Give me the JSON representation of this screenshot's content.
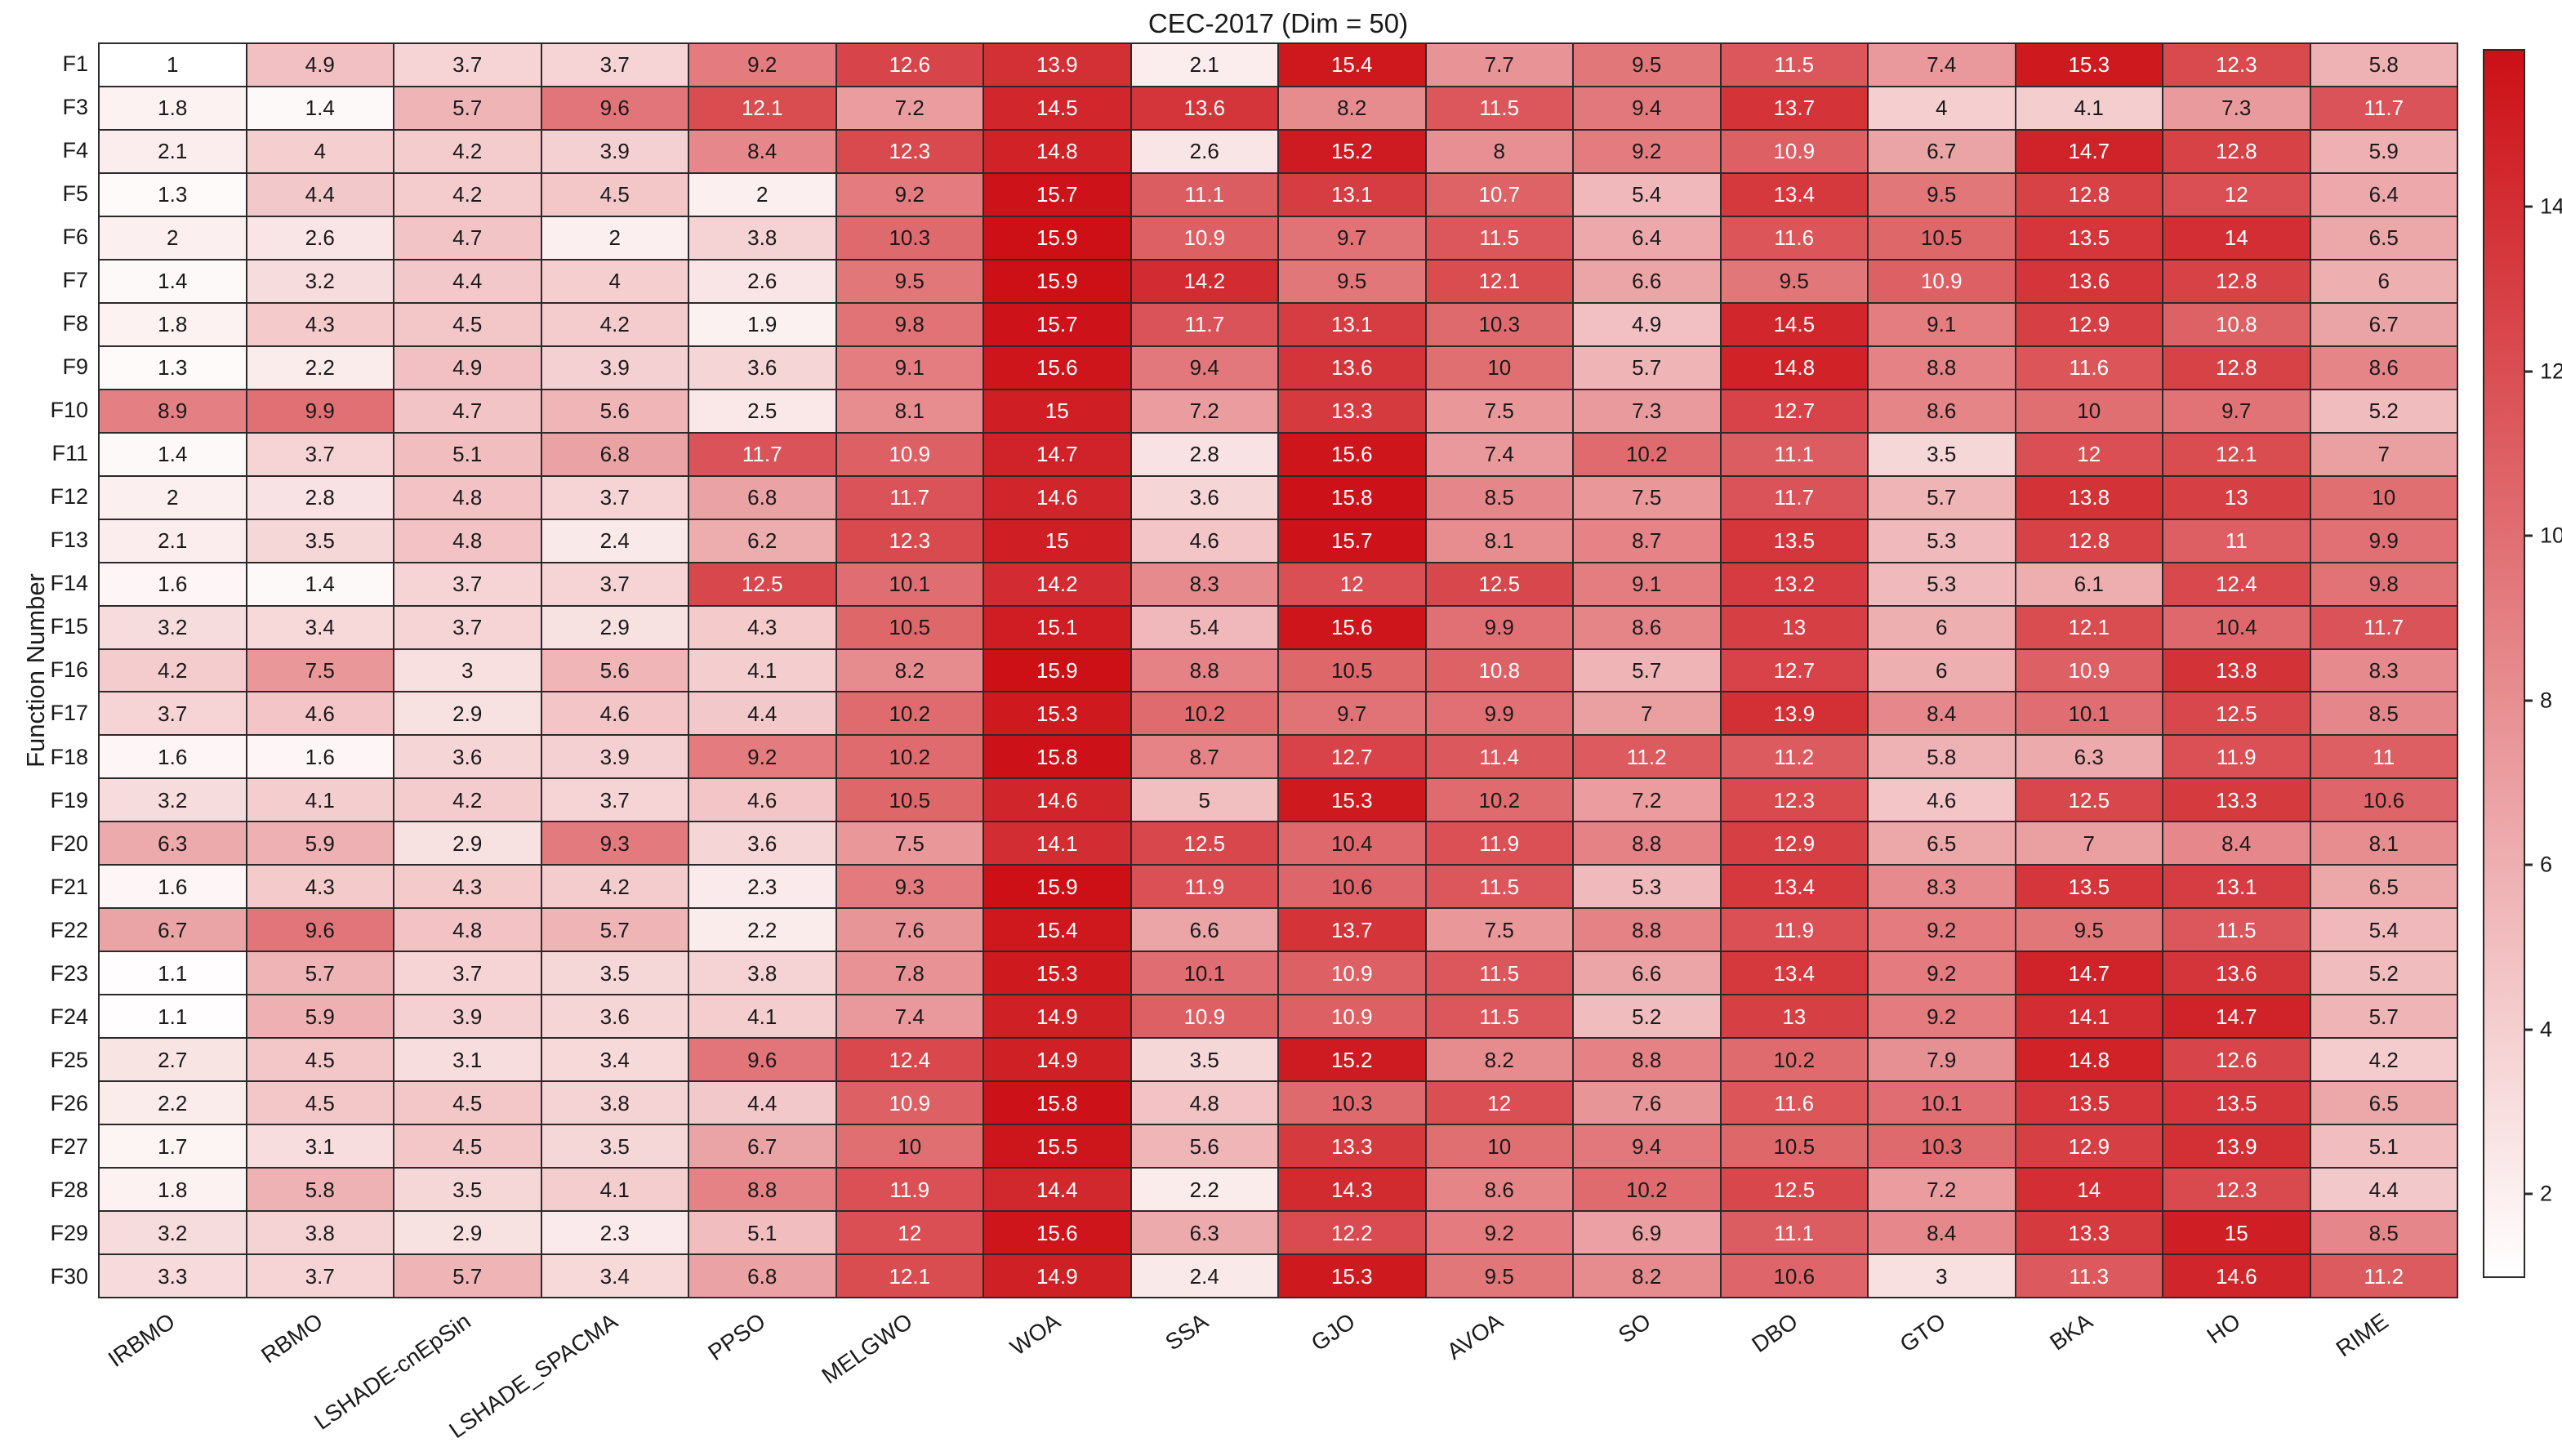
{
  "title": "CEC-2017 (Dim = 50)",
  "chart_data": {
    "type": "heatmap",
    "title": "CEC-2017 (Dim = 50)",
    "xlabel": "",
    "ylabel": "Function Number",
    "columns": [
      "IRBMO",
      "RBMO",
      "LSHADE-cnEpSin",
      "LSHADE_SPACMA",
      "PPSO",
      "MELGWO",
      "WOA",
      "SSA",
      "GJO",
      "AVOA",
      "SO",
      "DBO",
      "GTO",
      "BKA",
      "HO",
      "RIME"
    ],
    "rows": [
      "F1",
      "F3",
      "F4",
      "F5",
      "F6",
      "F7",
      "F8",
      "F9",
      "F10",
      "F11",
      "F12",
      "F13",
      "F14",
      "F15",
      "F16",
      "F17",
      "F18",
      "F19",
      "F20",
      "F21",
      "F22",
      "F23",
      "F24",
      "F25",
      "F26",
      "F27",
      "F28",
      "F29",
      "F30"
    ],
    "values": [
      [
        1,
        4.9,
        3.7,
        3.7,
        9.2,
        12.6,
        13.9,
        2.1,
        15.4,
        7.7,
        9.5,
        11.5,
        7.4,
        15.3,
        12.3,
        5.8
      ],
      [
        1.8,
        1.4,
        5.7,
        9.6,
        12.1,
        7.2,
        14.5,
        13.6,
        8.2,
        11.5,
        9.4,
        13.7,
        4,
        4.1,
        7.3,
        11.7
      ],
      [
        2.1,
        4,
        4.2,
        3.9,
        8.4,
        12.3,
        14.8,
        2.6,
        15.2,
        8,
        9.2,
        10.9,
        6.7,
        14.7,
        12.8,
        5.9
      ],
      [
        1.3,
        4.4,
        4.2,
        4.5,
        2,
        9.2,
        15.7,
        11.1,
        13.1,
        10.7,
        5.4,
        13.4,
        9.5,
        12.8,
        12,
        6.4
      ],
      [
        2,
        2.6,
        4.7,
        2,
        3.8,
        10.3,
        15.9,
        10.9,
        9.7,
        11.5,
        6.4,
        11.6,
        10.5,
        13.5,
        14,
        6.5
      ],
      [
        1.4,
        3.2,
        4.4,
        4,
        2.6,
        9.5,
        15.9,
        14.2,
        9.5,
        12.1,
        6.6,
        9.5,
        10.9,
        13.6,
        12.8,
        6
      ],
      [
        1.8,
        4.3,
        4.5,
        4.2,
        1.9,
        9.8,
        15.7,
        11.7,
        13.1,
        10.3,
        4.9,
        14.5,
        9.1,
        12.9,
        10.8,
        6.7
      ],
      [
        1.3,
        2.2,
        4.9,
        3.9,
        3.6,
        9.1,
        15.6,
        9.4,
        13.6,
        10,
        5.7,
        14.8,
        8.8,
        11.6,
        12.8,
        8.6
      ],
      [
        8.9,
        9.9,
        4.7,
        5.6,
        2.5,
        8.1,
        15,
        7.2,
        13.3,
        7.5,
        7.3,
        12.7,
        8.6,
        10,
        9.7,
        5.2
      ],
      [
        1.4,
        3.7,
        5.1,
        6.8,
        11.7,
        10.9,
        14.7,
        2.8,
        15.6,
        7.4,
        10.2,
        11.1,
        3.5,
        12,
        12.1,
        7
      ],
      [
        2,
        2.8,
        4.8,
        3.7,
        6.8,
        11.7,
        14.6,
        3.6,
        15.8,
        8.5,
        7.5,
        11.7,
        5.7,
        13.8,
        13,
        10
      ],
      [
        2.1,
        3.5,
        4.8,
        2.4,
        6.2,
        12.3,
        15,
        4.6,
        15.7,
        8.1,
        8.7,
        13.5,
        5.3,
        12.8,
        11,
        9.9
      ],
      [
        1.6,
        1.4,
        3.7,
        3.7,
        12.5,
        10.1,
        14.2,
        8.3,
        12,
        12.5,
        9.1,
        13.2,
        5.3,
        6.1,
        12.4,
        9.8
      ],
      [
        3.2,
        3.4,
        3.7,
        2.9,
        4.3,
        10.5,
        15.1,
        5.4,
        15.6,
        9.9,
        8.6,
        13,
        6,
        12.1,
        10.4,
        11.7
      ],
      [
        4.2,
        7.5,
        3,
        5.6,
        4.1,
        8.2,
        15.9,
        8.8,
        10.5,
        10.8,
        5.7,
        12.7,
        6,
        10.9,
        13.8,
        8.3
      ],
      [
        3.7,
        4.6,
        2.9,
        4.6,
        4.4,
        10.2,
        15.3,
        10.2,
        9.7,
        9.9,
        7,
        13.9,
        8.4,
        10.1,
        12.5,
        8.5
      ],
      [
        1.6,
        1.6,
        3.6,
        3.9,
        9.2,
        10.2,
        15.8,
        8.7,
        12.7,
        11.4,
        11.2,
        11.2,
        5.8,
        6.3,
        11.9,
        11
      ],
      [
        3.2,
        4.1,
        4.2,
        3.7,
        4.6,
        10.5,
        14.6,
        5,
        15.3,
        10.2,
        7.2,
        12.3,
        4.6,
        12.5,
        13.3,
        10.6
      ],
      [
        6.3,
        5.9,
        2.9,
        9.3,
        3.6,
        7.5,
        14.1,
        12.5,
        10.4,
        11.9,
        8.8,
        12.9,
        6.5,
        7,
        8.4,
        8.1
      ],
      [
        1.6,
        4.3,
        4.3,
        4.2,
        2.3,
        9.3,
        15.9,
        11.9,
        10.6,
        11.5,
        5.3,
        13.4,
        8.3,
        13.5,
        13.1,
        6.5
      ],
      [
        6.7,
        9.6,
        4.8,
        5.7,
        2.2,
        7.6,
        15.4,
        6.6,
        13.7,
        7.5,
        8.8,
        11.9,
        9.2,
        9.5,
        11.5,
        5.4
      ],
      [
        1.1,
        5.7,
        3.7,
        3.5,
        3.8,
        7.8,
        15.3,
        10.1,
        10.9,
        11.5,
        6.6,
        13.4,
        9.2,
        14.7,
        13.6,
        5.2
      ],
      [
        1.1,
        5.9,
        3.9,
        3.6,
        4.1,
        7.4,
        14.9,
        10.9,
        10.9,
        11.5,
        5.2,
        13,
        9.2,
        14.1,
        14.7,
        5.7
      ],
      [
        2.7,
        4.5,
        3.1,
        3.4,
        9.6,
        12.4,
        14.9,
        3.5,
        15.2,
        8.2,
        8.8,
        10.2,
        7.9,
        14.8,
        12.6,
        4.2
      ],
      [
        2.2,
        4.5,
        4.5,
        3.8,
        4.4,
        10.9,
        15.8,
        4.8,
        10.3,
        12,
        7.6,
        11.6,
        10.1,
        13.5,
        13.5,
        6.5
      ],
      [
        1.7,
        3.1,
        4.5,
        3.5,
        6.7,
        10,
        15.5,
        5.6,
        13.3,
        10,
        9.4,
        10.5,
        10.3,
        12.9,
        13.9,
        5.1
      ],
      [
        1.8,
        5.8,
        3.5,
        4.1,
        8.8,
        11.9,
        14.4,
        2.2,
        14.3,
        8.6,
        10.2,
        12.5,
        7.2,
        14,
        12.3,
        4.4
      ],
      [
        3.2,
        3.8,
        2.9,
        2.3,
        5.1,
        12,
        15.6,
        6.3,
        12.2,
        9.2,
        6.9,
        11.1,
        8.4,
        13.3,
        15,
        8.5
      ],
      [
        3.3,
        3.7,
        5.7,
        3.4,
        6.8,
        12.1,
        14.9,
        2.4,
        15.3,
        9.5,
        8.2,
        10.6,
        3,
        11.3,
        14.6,
        11.2
      ]
    ],
    "vmin": 1,
    "vmax": 15.9,
    "colormap_low": "#ffffff",
    "colormap_high": "#cc1016",
    "white_text_threshold": 10.65,
    "colorbar_ticks": [
      2,
      4,
      6,
      8,
      10,
      12,
      14
    ],
    "legend_position": "right-colorbar",
    "grid": "on",
    "x_tick_rotation_deg": 35
  }
}
